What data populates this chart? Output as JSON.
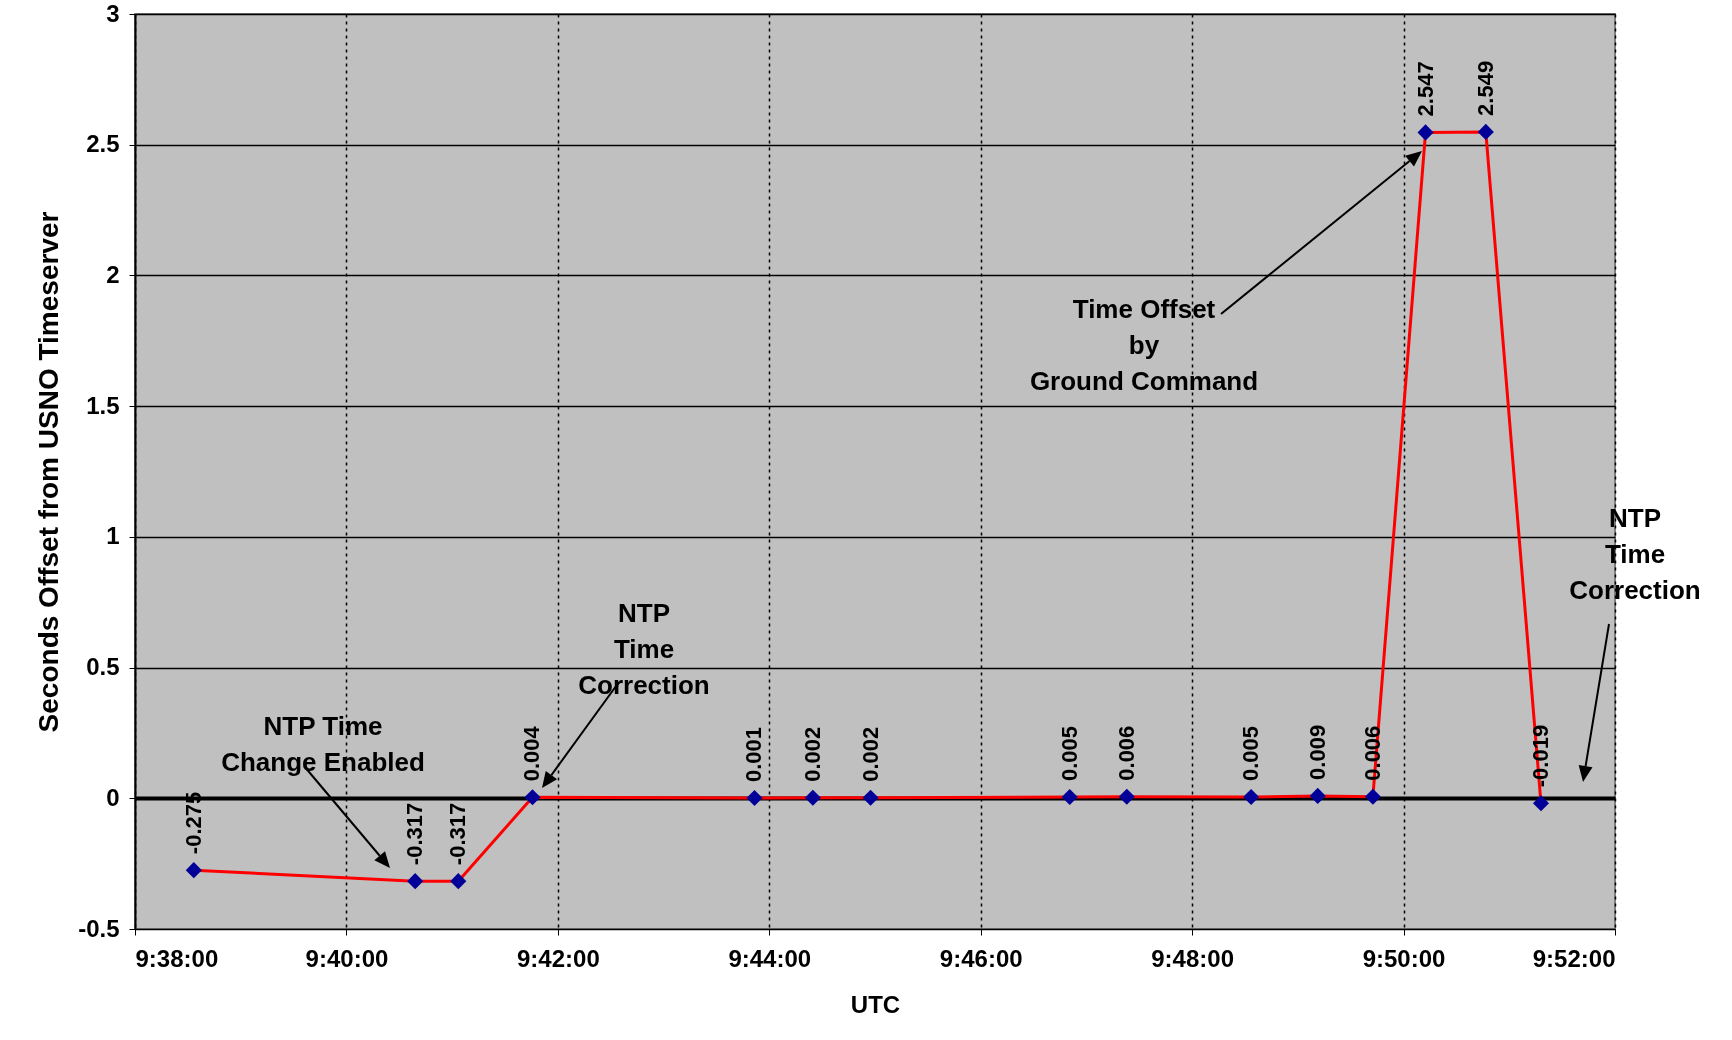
{
  "chart_data": {
    "type": "line",
    "xlabel": "UTC",
    "ylabel": "Seconds Offset from USNO Timeserver",
    "x": [
      9.6426,
      9.6775,
      9.6843,
      9.696,
      9.731,
      9.7402,
      9.7493,
      9.7807,
      9.7897,
      9.8093,
      9.8198,
      9.8285,
      9.8368,
      9.8463,
      9.855
    ],
    "series": [
      {
        "color": "#ff0000",
        "values": [
          -0.275,
          -0.317,
          -0.317,
          0.004,
          0.001,
          0.002,
          0.002,
          0.005,
          0.006,
          0.005,
          0.009,
          0.006,
          2.547,
          2.549,
          -0.019
        ]
      }
    ],
    "xlim": [
      9.63333,
      9.86667
    ],
    "xticks": [
      {
        "value": 9.63333,
        "label": "9:38:00"
      },
      {
        "value": 9.66667,
        "label": "9:40:00"
      },
      {
        "value": 9.7,
        "label": "9:42:00"
      },
      {
        "value": 9.73333,
        "label": "9:44:00"
      },
      {
        "value": 9.76667,
        "label": "9:46:00"
      },
      {
        "value": 9.8,
        "label": "9:48:00"
      },
      {
        "value": 9.83333,
        "label": "9:50:00"
      },
      {
        "value": 9.86667,
        "label": "9:52:00"
      }
    ],
    "ylim": [
      -0.5,
      3
    ],
    "yticks": [
      -0.5,
      0,
      0.5,
      1,
      1.5,
      2,
      2.5,
      3
    ],
    "grid": true,
    "marker": "diamond",
    "line_style": "solid",
    "data_labels": true,
    "annotations": [
      "NTP Time\nChange Enabled",
      "NTP\nTime\nCorrection",
      "Time Offset\nby\nGround Command",
      "NTP\nTime\nCorrection"
    ]
  }
}
